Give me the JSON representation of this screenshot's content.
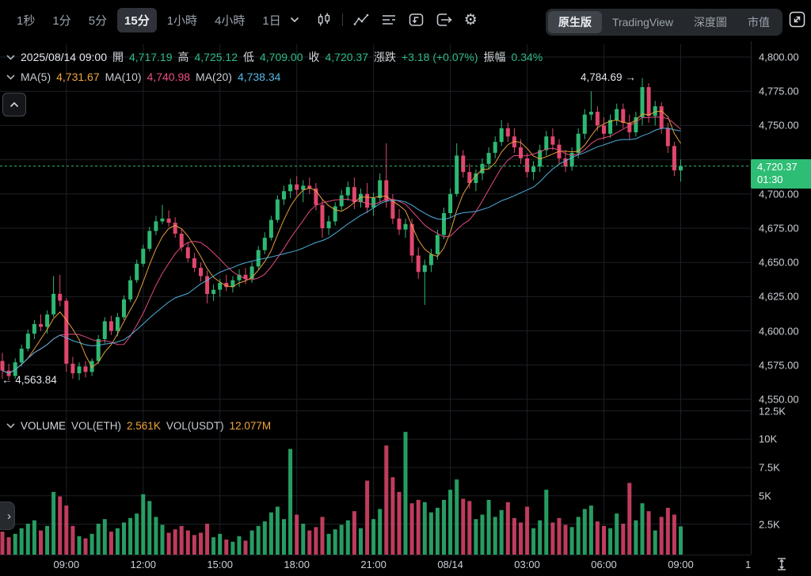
{
  "toolbar": {
    "timeframes": [
      {
        "label": "1秒",
        "selected": false
      },
      {
        "label": "1分",
        "selected": false
      },
      {
        "label": "5分",
        "selected": false
      },
      {
        "label": "15分",
        "selected": true
      },
      {
        "label": "1小時",
        "selected": false
      },
      {
        "label": "4小時",
        "selected": false
      },
      {
        "label": "1日",
        "selected": false
      }
    ],
    "icon_names": [
      "chevron-down-icon",
      "candlestick-style-icon",
      "indicators-icon",
      "display-settings-icon",
      "replay-icon",
      "save-chart-icon",
      "settings-gear-icon",
      "fullscreen-icon"
    ],
    "view_tabs": [
      {
        "label": "原生版",
        "selected": true
      },
      {
        "label": "TradingView",
        "selected": false
      },
      {
        "label": "深度圖",
        "selected": false
      },
      {
        "label": "市值",
        "selected": false
      }
    ]
  },
  "ohlc_row": {
    "date": "2025/08/14 09:00",
    "open_label": "開",
    "open": "4,717.19",
    "high_label": "高",
    "high": "4,725.12",
    "low_label": "低",
    "low": "4,709.00",
    "close_label": "收",
    "close": "4,720.37",
    "change_label": "漲跌",
    "change": "+3.18 (+0.07%)",
    "amplitude_label": "振幅",
    "amplitude": "0.34%"
  },
  "ma_row": {
    "ma5_label": "MA(5)",
    "ma5": "4,731.67",
    "ma10_label": "MA(10)",
    "ma10": "4,740.98",
    "ma20_label": "MA(20)",
    "ma20": "4,738.34"
  },
  "volume_header": {
    "title": "VOLUME",
    "vol_eth_label": "VOL(ETH)",
    "vol_eth": "2.561K",
    "vol_usdt_label": "VOL(USDT)",
    "vol_usdt": "12.077M"
  },
  "price_badge": {
    "price": "4,720.37",
    "countdown": "01:30"
  },
  "annotations": {
    "high": "4,784.69 →",
    "low": "← 4,563.84"
  },
  "price_axis": [
    {
      "text": "4,800.00",
      "price": 4800
    },
    {
      "text": "4,775.00",
      "price": 4775
    },
    {
      "text": "4,750.00",
      "price": 4750
    },
    {
      "text": "4,700.00",
      "price": 4700
    },
    {
      "text": "4,675.00",
      "price": 4675
    },
    {
      "text": "4,650.00",
      "price": 4650
    },
    {
      "text": "4,625.00",
      "price": 4625
    },
    {
      "text": "4,600.00",
      "price": 4600
    },
    {
      "text": "4,575.00",
      "price": 4575
    },
    {
      "text": "4,550.00",
      "price": 4550
    }
  ],
  "volume_axis": [
    {
      "text": "12.5K",
      "value": 12.5
    },
    {
      "text": "10K",
      "value": 10
    },
    {
      "text": "7.5K",
      "value": 7.5
    },
    {
      "text": "5K",
      "value": 5
    },
    {
      "text": "2.5K",
      "value": 2.5
    }
  ],
  "time_axis": {
    "labels": [
      {
        "text": "09:00",
        "i": 10
      },
      {
        "text": "12:00",
        "i": 22
      },
      {
        "text": "15:00",
        "i": 34
      },
      {
        "text": "18:00",
        "i": 46
      },
      {
        "text": "21:00",
        "i": 58
      },
      {
        "text": "08/14",
        "i": 70
      },
      {
        "text": "03:00",
        "i": 82
      },
      {
        "text": "06:00",
        "i": 94
      },
      {
        "text": "09:00",
        "i": 106
      }
    ],
    "partial_label": "1"
  },
  "colors": {
    "up": "#2eb872",
    "down": "#e0476d",
    "value_green": "#2ebd85",
    "badge_green": "#2ebd74",
    "ma5": "#f0a63c",
    "ma10": "#ed4f84",
    "ma20": "#54b8e8",
    "orange_value": "#f0a63c",
    "grid": "#1c2026",
    "axis_text": "#ccd1d7",
    "background": "#000000"
  },
  "chart_data": {
    "type": "candlestick_with_volume",
    "interval": "15分",
    "visible_price_range": [
      4550,
      4800
    ],
    "volume_axis_max_k": 12.5,
    "current_price": 4720.37,
    "session_high": 4784.69,
    "session_low": 4563.84,
    "ma_periods": [
      5,
      10,
      20
    ],
    "candles": [
      [
        4578,
        4584,
        4565,
        4571
      ],
      [
        4571,
        4576,
        4563.84,
        4567
      ],
      [
        4567,
        4580,
        4565,
        4577
      ],
      [
        4577,
        4590,
        4574,
        4587
      ],
      [
        4587,
        4601,
        4585,
        4598
      ],
      [
        4598,
        4608,
        4594,
        4605
      ],
      [
        4605,
        4612,
        4600,
        4603
      ],
      [
        4603,
        4615,
        4598,
        4612
      ],
      [
        4612,
        4640,
        4610,
        4627
      ],
      [
        4627,
        4641,
        4618,
        4622
      ],
      [
        4622,
        4624,
        4570,
        4576
      ],
      [
        4576,
        4581,
        4565,
        4569
      ],
      [
        4569,
        4577,
        4564,
        4574
      ],
      [
        4574,
        4578,
        4566,
        4570
      ],
      [
        4570,
        4580,
        4567,
        4578
      ],
      [
        4578,
        4597,
        4576,
        4594
      ],
      [
        4594,
        4610,
        4591,
        4607
      ],
      [
        4607,
        4611,
        4597,
        4600
      ],
      [
        4600,
        4613,
        4596,
        4610
      ],
      [
        4610,
        4626,
        4608,
        4623
      ],
      [
        4623,
        4640,
        4621,
        4637
      ],
      [
        4637,
        4652,
        4635,
        4649
      ],
      [
        4649,
        4663,
        4647,
        4660
      ],
      [
        4660,
        4676,
        4658,
        4673
      ],
      [
        4673,
        4684,
        4670,
        4680
      ],
      [
        4680,
        4692,
        4678,
        4682
      ],
      [
        4682,
        4688,
        4676,
        4679
      ],
      [
        4679,
        4683,
        4668,
        4671
      ],
      [
        4671,
        4674,
        4658,
        4661
      ],
      [
        4661,
        4665,
        4650,
        4653
      ],
      [
        4653,
        4657,
        4643,
        4646
      ],
      [
        4646,
        4650,
        4636,
        4640
      ],
      [
        4640,
        4644,
        4620,
        4627
      ],
      [
        4627,
        4634,
        4622,
        4630
      ],
      [
        4630,
        4638,
        4625,
        4635
      ],
      [
        4635,
        4641,
        4629,
        4632
      ],
      [
        4632,
        4640,
        4628,
        4637
      ],
      [
        4637,
        4645,
        4632,
        4641
      ],
      [
        4641,
        4646,
        4634,
        4638
      ],
      [
        4638,
        4650,
        4635,
        4647
      ],
      [
        4647,
        4662,
        4645,
        4659
      ],
      [
        4659,
        4672,
        4656,
        4668
      ],
      [
        4668,
        4684,
        4666,
        4681
      ],
      [
        4681,
        4699,
        4679,
        4696
      ],
      [
        4696,
        4706,
        4692,
        4702
      ],
      [
        4702,
        4711,
        4697,
        4707
      ],
      [
        4707,
        4713,
        4699,
        4703
      ],
      [
        4703,
        4710,
        4694,
        4706
      ],
      [
        4706,
        4712,
        4700,
        4704
      ],
      [
        4704,
        4708,
        4688,
        4692
      ],
      [
        4692,
        4696,
        4668,
        4675
      ],
      [
        4675,
        4684,
        4670,
        4680
      ],
      [
        4680,
        4694,
        4677,
        4691
      ],
      [
        4691,
        4703,
        4688,
        4699
      ],
      [
        4699,
        4709,
        4695,
        4705
      ],
      [
        4705,
        4712,
        4689,
        4694
      ],
      [
        4694,
        4704,
        4690,
        4700
      ],
      [
        4700,
        4708,
        4686,
        4690
      ],
      [
        4690,
        4701,
        4684,
        4697
      ],
      [
        4697,
        4715,
        4694,
        4710
      ],
      [
        4710,
        4737,
        4690,
        4695
      ],
      [
        4695,
        4700,
        4678,
        4682
      ],
      [
        4682,
        4689,
        4670,
        4674
      ],
      [
        4674,
        4682,
        4668,
        4678
      ],
      [
        4678,
        4682,
        4650,
        4655
      ],
      [
        4655,
        4661,
        4638,
        4643
      ],
      [
        4643,
        4652,
        4619,
        4648
      ],
      [
        4648,
        4660,
        4643,
        4656
      ],
      [
        4656,
        4674,
        4652,
        4670
      ],
      [
        4670,
        4690,
        4667,
        4686
      ],
      [
        4686,
        4704,
        4683,
        4700
      ],
      [
        4700,
        4737,
        4698,
        4728
      ],
      [
        4728,
        4732,
        4712,
        4716
      ],
      [
        4716,
        4722,
        4704,
        4708
      ],
      [
        4708,
        4718,
        4702,
        4715
      ],
      [
        4715,
        4726,
        4710,
        4722
      ],
      [
        4722,
        4734,
        4718,
        4730
      ],
      [
        4730,
        4742,
        4726,
        4738
      ],
      [
        4738,
        4754,
        4735,
        4748
      ],
      [
        4748,
        4752,
        4738,
        4742
      ],
      [
        4742,
        4748,
        4730,
        4734
      ],
      [
        4734,
        4740,
        4722,
        4726
      ],
      [
        4726,
        4730,
        4712,
        4716
      ],
      [
        4716,
        4724,
        4710,
        4720
      ],
      [
        4720,
        4736,
        4716,
        4732
      ],
      [
        4732,
        4746,
        4728,
        4742
      ],
      [
        4742,
        4748,
        4732,
        4736
      ],
      [
        4736,
        4740,
        4722,
        4726
      ],
      [
        4726,
        4732,
        4716,
        4720
      ],
      [
        4720,
        4734,
        4717,
        4730
      ],
      [
        4730,
        4748,
        4726,
        4744
      ],
      [
        4744,
        4762,
        4740,
        4758
      ],
      [
        4758,
        4775,
        4754,
        4760
      ],
      [
        4760,
        4764,
        4746,
        4750
      ],
      [
        4750,
        4756,
        4740,
        4744
      ],
      [
        4744,
        4758,
        4741,
        4754
      ],
      [
        4754,
        4766,
        4750,
        4762
      ],
      [
        4762,
        4766,
        4748,
        4752
      ],
      [
        4752,
        4758,
        4740,
        4745
      ],
      [
        4745,
        4760,
        4742,
        4756
      ],
      [
        4756,
        4784.69,
        4750,
        4778
      ],
      [
        4778,
        4781,
        4752,
        4757
      ],
      [
        4757,
        4768,
        4750,
        4764
      ],
      [
        4764,
        4767,
        4744,
        4748
      ],
      [
        4748,
        4752,
        4730,
        4735
      ],
      [
        4735,
        4738,
        4713,
        4717.19
      ],
      [
        4717.19,
        4725.12,
        4709,
        4720.37
      ]
    ],
    "volumes_k": [
      2.1,
      1.6,
      1.9,
      2.4,
      2.8,
      3.1,
      2.2,
      2.6,
      5.6,
      5.2,
      4.4,
      2.6,
      1.7,
      1.5,
      1.9,
      2.8,
      3.2,
      2.1,
      2.4,
      2.9,
      3.3,
      3.7,
      5.4,
      4.8,
      3.4,
      2.7,
      2.0,
      2.3,
      2.6,
      2.2,
      1.8,
      2.0,
      2.8,
      1.6,
      1.9,
      1.4,
      1.2,
      1.7,
      1.3,
      2.2,
      2.6,
      3.0,
      3.8,
      4.3,
      3.2,
      9.4,
      3.6,
      2.8,
      2.2,
      2.5,
      3.4,
      1.9,
      2.3,
      2.7,
      3.1,
      3.9,
      2.4,
      6.6,
      3.2,
      4.1,
      9.7,
      6.9,
      5.6,
      10.9,
      4.6,
      4.9,
      4.7,
      3.8,
      4.2,
      4.9,
      5.8,
      6.7,
      5.0,
      4.8,
      3.2,
      3.6,
      4.9,
      3.4,
      4.0,
      4.7,
      3.3,
      2.9,
      4.3,
      2.4,
      3.1,
      5.8,
      2.9,
      3.3,
      2.7,
      2.5,
      3.4,
      4.1,
      4.4,
      3.0,
      2.6,
      2.4,
      3.7,
      2.8,
      6.4,
      3.1,
      4.6,
      3.9,
      2.2,
      3.4,
      4.2,
      3.6,
      2.561
    ]
  }
}
